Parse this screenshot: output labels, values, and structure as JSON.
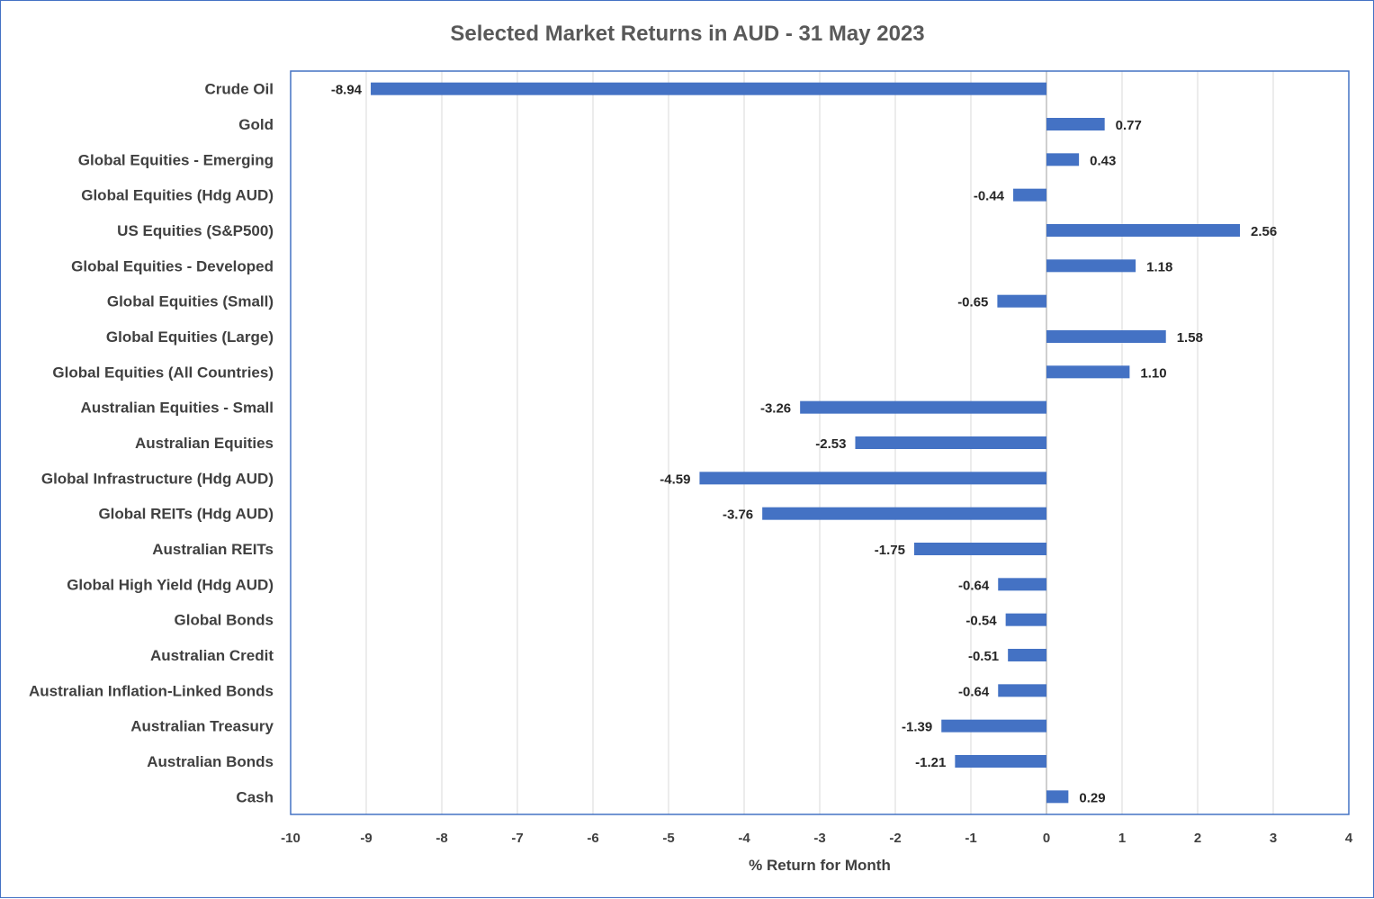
{
  "chart_data": {
    "type": "bar",
    "orientation": "horizontal",
    "title": "Selected Market Returns in AUD - 31 May 2023",
    "xlabel": "% Return for Month",
    "ylabel": "",
    "xlim": [
      -10,
      4
    ],
    "xticks": [
      -10,
      -9,
      -8,
      -7,
      -6,
      -5,
      -4,
      -3,
      -2,
      -1,
      0,
      1,
      2,
      3,
      4
    ],
    "grid": true,
    "legend": "none",
    "categories": [
      "Crude Oil",
      "Gold",
      "Global Equities - Emerging",
      "Global Equities (Hdg AUD)",
      "US Equities (S&P500)",
      "Global Equities - Developed",
      "Global Equities (Small)",
      "Global Equities (Large)",
      "Global Equities (All Countries)",
      "Australian Equities - Small",
      "Australian Equities",
      "Global Infrastructure (Hdg AUD)",
      "Global REITs (Hdg AUD)",
      "Australian REITs",
      "Global High Yield (Hdg AUD)",
      "Global Bonds",
      "Australian Credit",
      "Australian Inflation-Linked Bonds",
      "Australian Treasury",
      "Australian Bonds",
      "Cash"
    ],
    "values": [
      -8.94,
      0.77,
      0.43,
      -0.44,
      2.56,
      1.18,
      -0.65,
      1.58,
      1.1,
      -3.26,
      -2.53,
      -4.59,
      -3.76,
      -1.75,
      -0.64,
      -0.54,
      -0.51,
      -0.64,
      -1.39,
      -1.21,
      0.29
    ],
    "value_labels": [
      "-8.94",
      "0.77",
      "0.43",
      "-0.44",
      "2.56",
      "1.18",
      "-0.65",
      "1.58",
      "1.10",
      "-3.26",
      "-2.53",
      "-4.59",
      "-3.76",
      "-1.75",
      "-0.64",
      "-0.54",
      "-0.51",
      "-0.64",
      "-1.39",
      "-1.21",
      "0.29"
    ],
    "colors": {
      "bar": "#4472C4",
      "plot_border": "#4472C4",
      "grid": "#D9D9D9",
      "zero_line": "#BFBFBF"
    }
  }
}
